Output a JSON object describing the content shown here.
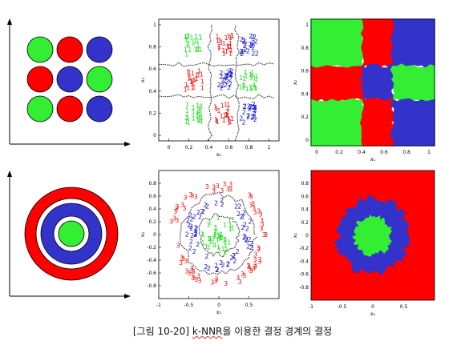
{
  "colors": {
    "red": "#ff0000",
    "green": "#33ee33",
    "blue": "#3333cc",
    "digit_red": "#ee1111",
    "digit_green": "#22dd22",
    "digit_blue": "#1111cc",
    "boundary": "#333333"
  },
  "caption": {
    "prefix": "[그림 10-20]  ",
    "underlined": "k-NNR",
    "suffix": "을 이용한 결정 경계의 결정"
  },
  "grid_colors": [
    "green",
    "red",
    "blue",
    "red",
    "blue",
    "green",
    "green",
    "red",
    "blue"
  ],
  "top_axis": {
    "x_ticks": [
      "0",
      "0.2",
      "0.4",
      "0.6",
      "0.8",
      "1"
    ],
    "y_ticks": [
      "0",
      "0.2",
      "0.4",
      "0.6",
      "0.8",
      "1"
    ],
    "xlabel": "x₁",
    "ylabel": "x₂"
  },
  "bottom_axis": {
    "x_ticks": [
      "-1",
      "-0.5",
      "0",
      "0.5"
    ],
    "y_ticks": [
      "-0.8",
      "-0.6",
      "-0.4",
      "-0.2",
      "0",
      "0.2",
      "0.4",
      "0.6",
      "0.8"
    ],
    "xlabel": "x₁",
    "ylabel": "x₂"
  },
  "class_digits": {
    "one": "1",
    "two": "2",
    "three": "3"
  }
}
